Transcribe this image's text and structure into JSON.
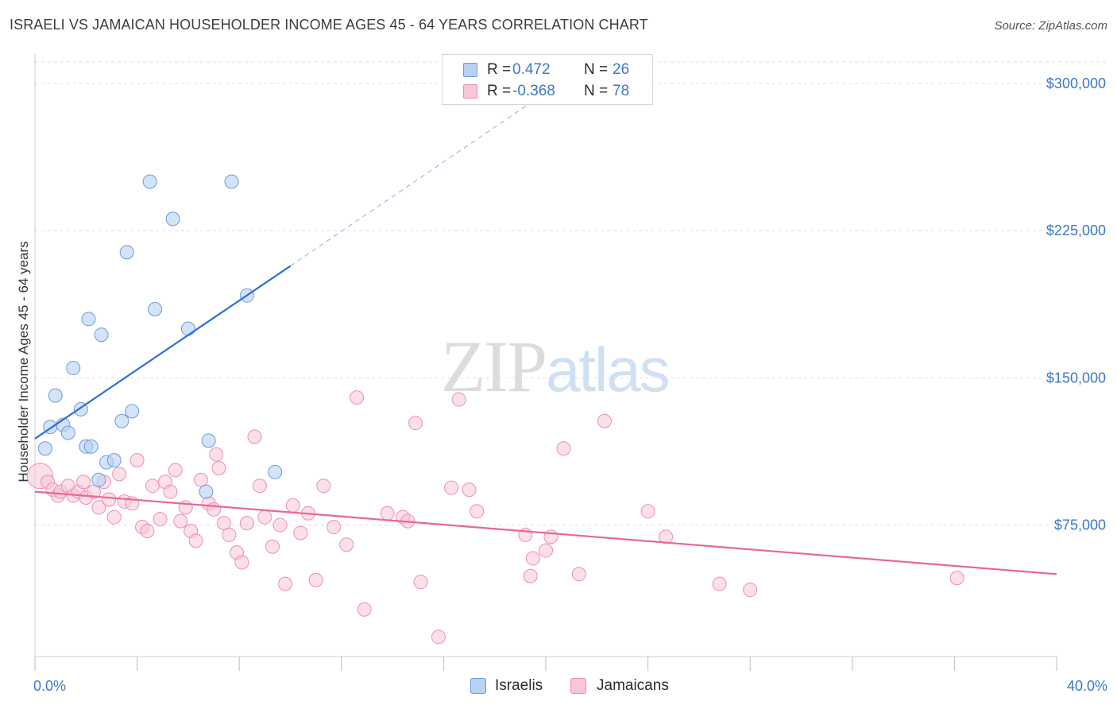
{
  "title": "ISRAELI VS JAMAICAN HOUSEHOLDER INCOME AGES 45 - 64 YEARS CORRELATION CHART",
  "source": "Source: ZipAtlas.com",
  "watermark": {
    "zip": "ZIP",
    "atlas": "atlas"
  },
  "legend": {
    "rows": [
      {
        "r_label": "R =",
        "r_value": "0.472",
        "n_label": "N =",
        "n_value": "26"
      },
      {
        "r_label": "R =",
        "r_value": "-0.368",
        "n_label": "N =",
        "n_value": "78"
      }
    ]
  },
  "bottom_legend": [
    "Israelis",
    "Jamaicans"
  ],
  "x_axis": {
    "min_label": "0.0%",
    "max_label": "40.0%"
  },
  "colors": {
    "israelis_fill": "#b9d1f2",
    "israelis_stroke": "#6a9be0",
    "israelis_line": "#2e6fd2",
    "jamaicans_fill": "#f8c6d6",
    "jamaicans_stroke": "#ec8fb0",
    "jamaicans_line": "#e8669a",
    "tick_label": "#3b78c7",
    "grid": "#dedede"
  },
  "chart_data": {
    "type": "scatter",
    "title": "ISRAELI VS JAMAICAN HOUSEHOLDER INCOME AGES 45 - 64 YEARS CORRELATION CHART",
    "xlabel": "",
    "ylabel": "Householder Income Ages 45 - 64 years",
    "xlim": [
      0,
      40
    ],
    "ylim": [
      8000,
      315000
    ],
    "y_ticks": [
      75000,
      150000,
      225000,
      300000
    ],
    "y_tick_labels": [
      "$75,000",
      "$150,000",
      "$225,000",
      "$300,000"
    ],
    "x_tick_labels": [
      "0.0%",
      "40.0%"
    ],
    "grid": true,
    "legend_position": "top-center",
    "series": [
      {
        "name": "Israelis",
        "R": 0.472,
        "N": 26,
        "x": [
          0.4,
          0.6,
          0.8,
          1.1,
          1.3,
          1.5,
          1.8,
          2.0,
          2.1,
          2.2,
          2.5,
          2.6,
          2.8,
          3.1,
          3.4,
          3.6,
          3.8,
          4.5,
          4.7,
          5.4,
          6.0,
          6.7,
          6.8,
          7.7,
          8.3,
          9.4
        ],
        "y": [
          114000,
          125000,
          141000,
          126000,
          122000,
          155000,
          134000,
          115000,
          180000,
          115000,
          98000,
          172000,
          107000,
          108000,
          128000,
          214000,
          133000,
          250000,
          185000,
          231000,
          175000,
          92000,
          118000,
          250000,
          192000,
          102000
        ],
        "trend": {
          "x0": 0,
          "y0": 119000,
          "x1": 10.0,
          "y1": 207000,
          "dashed_to_x": 19.5,
          "dashed_to_y": 291000
        }
      },
      {
        "name": "Jamaicans",
        "R": -0.368,
        "N": 78,
        "x": [
          0.2,
          0.5,
          0.7,
          0.9,
          1.0,
          1.3,
          1.5,
          1.7,
          1.9,
          2.0,
          2.3,
          2.5,
          2.7,
          2.9,
          3.1,
          3.3,
          3.5,
          3.8,
          4.0,
          4.2,
          4.4,
          4.6,
          4.9,
          5.1,
          5.3,
          5.5,
          5.7,
          5.9,
          6.1,
          6.3,
          6.5,
          6.8,
          7.0,
          7.1,
          7.2,
          7.4,
          7.6,
          7.9,
          8.1,
          8.3,
          8.6,
          8.8,
          9.0,
          9.3,
          9.6,
          9.8,
          10.1,
          10.4,
          10.7,
          11.0,
          11.3,
          11.7,
          12.2,
          12.6,
          12.9,
          13.8,
          14.4,
          14.6,
          14.9,
          15.1,
          15.8,
          16.3,
          16.6,
          17.0,
          17.3,
          19.2,
          19.4,
          19.5,
          20.0,
          20.2,
          20.7,
          21.3,
          22.3,
          24.0,
          24.7,
          26.8,
          28.0,
          36.1
        ],
        "y": [
          100000,
          97000,
          93000,
          90000,
          92000,
          95000,
          90000,
          92000,
          97000,
          89000,
          92000,
          84000,
          97000,
          88000,
          79000,
          101000,
          87000,
          86000,
          108000,
          74000,
          72000,
          95000,
          78000,
          97000,
          92000,
          103000,
          77000,
          84000,
          72000,
          67000,
          98000,
          86000,
          83000,
          111000,
          104000,
          76000,
          70000,
          61000,
          56000,
          76000,
          120000,
          95000,
          79000,
          64000,
          75000,
          45000,
          85000,
          71000,
          81000,
          47000,
          95000,
          74000,
          65000,
          140000,
          32000,
          81000,
          79000,
          77000,
          127000,
          46000,
          18000,
          94000,
          139000,
          93000,
          82000,
          70000,
          49000,
          58000,
          62000,
          69000,
          114000,
          50000,
          128000,
          82000,
          69000,
          45000,
          42000,
          48000
        ],
        "trend": {
          "x0": 0,
          "y0": 92000,
          "x1": 40,
          "y1": 50000
        }
      }
    ]
  }
}
